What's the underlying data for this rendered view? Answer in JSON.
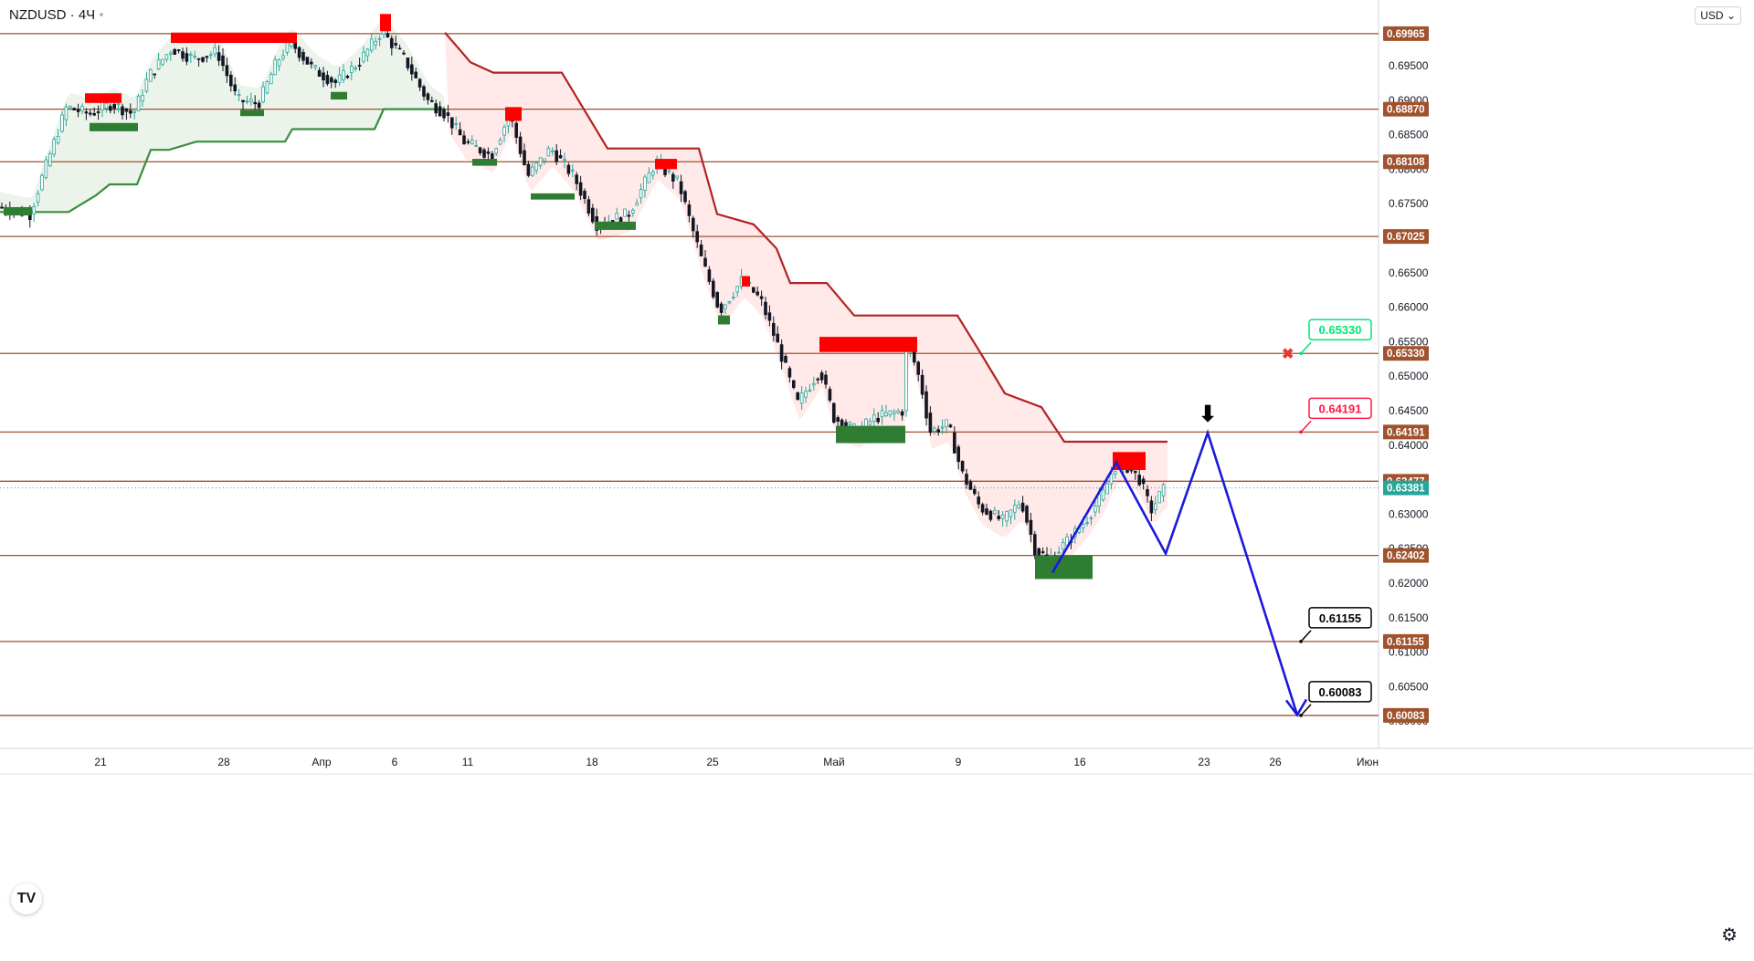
{
  "header": {
    "symbol": "NZDUSD",
    "timeframe": "4Ч",
    "currency": "USD"
  },
  "colors": {
    "level": "#a0522d",
    "level_label": "#a0522d",
    "price_label": "#26a69a",
    "up": "#26a69a",
    "down": "#131722",
    "resist_box": "#ff0000",
    "support_box": "#2e7d32",
    "trail_up": "#388e3c",
    "trail_down": "#b22222",
    "forecast": "#1a1adb",
    "callout_green": "#00e676",
    "callout_red": "#ff1744",
    "callout_black": "#000000"
  },
  "chart_data": {
    "type": "candlestick",
    "symbol": "NZDUSD",
    "timeframe": "4Ч",
    "y_range": [
      0.5985,
      0.7032
    ],
    "y_ticks": [
      "0.69500",
      "0.69000",
      "0.68500",
      "0.68000",
      "0.67500",
      "0.66500",
      "0.66000",
      "0.65500",
      "0.65000",
      "0.64500",
      "0.64000",
      "0.63000",
      "0.62500",
      "0.62000",
      "0.61500",
      "0.61000",
      "0.60500",
      "0.60000"
    ],
    "x_ticks": [
      "21",
      "28",
      "Апр",
      "6",
      "11",
      "18",
      "25",
      "Май",
      "9",
      "16",
      "23",
      "26",
      "Июн"
    ],
    "levels": [
      {
        "label": "0.69965",
        "value": 0.69965
      },
      {
        "label": "0.68870",
        "value": 0.6887
      },
      {
        "label": "0.68108",
        "value": 0.68108
      },
      {
        "label": "0.67025",
        "value": 0.67025
      },
      {
        "label": "0.65330",
        "value": 0.6533
      },
      {
        "label": "0.64191",
        "value": 0.64191
      },
      {
        "label": "0.63477",
        "value": 0.63477
      },
      {
        "label": "0.62402",
        "value": 0.62402
      },
      {
        "label": "0.61155",
        "value": 0.61155
      },
      {
        "label": "0.60083",
        "value": 0.60083
      }
    ],
    "current_price": {
      "label": "0.63381",
      "value": 0.63381
    },
    "price_path": [
      [
        0,
        0.6745
      ],
      [
        35,
        0.6735
      ],
      [
        50,
        0.6795
      ],
      [
        75,
        0.689
      ],
      [
        100,
        0.688
      ],
      [
        125,
        0.6895
      ],
      [
        148,
        0.688
      ],
      [
        165,
        0.6935
      ],
      [
        190,
        0.6975
      ],
      [
        215,
        0.696
      ],
      [
        240,
        0.697
      ],
      [
        262,
        0.69
      ],
      [
        285,
        0.6895
      ],
      [
        305,
        0.6955
      ],
      [
        320,
        0.6985
      ],
      [
        345,
        0.6945
      ],
      [
        370,
        0.6925
      ],
      [
        395,
        0.6955
      ],
      [
        420,
        0.7
      ],
      [
        445,
        0.696
      ],
      [
        470,
        0.69
      ],
      [
        490,
        0.688
      ],
      [
        510,
        0.684
      ],
      [
        540,
        0.682
      ],
      [
        560,
        0.688
      ],
      [
        580,
        0.679
      ],
      [
        605,
        0.683
      ],
      [
        630,
        0.679
      ],
      [
        655,
        0.672
      ],
      [
        690,
        0.6735
      ],
      [
        720,
        0.681
      ],
      [
        745,
        0.678
      ],
      [
        770,
        0.667
      ],
      [
        790,
        0.6595
      ],
      [
        815,
        0.664
      ],
      [
        835,
        0.661
      ],
      [
        855,
        0.654
      ],
      [
        875,
        0.646
      ],
      [
        900,
        0.651
      ],
      [
        915,
        0.644
      ],
      [
        940,
        0.642
      ],
      [
        960,
        0.644
      ],
      [
        990,
        0.645
      ],
      [
        995,
        0.6555
      ],
      [
        1010,
        0.649
      ],
      [
        1020,
        0.642
      ],
      [
        1040,
        0.643
      ],
      [
        1055,
        0.636
      ],
      [
        1075,
        0.631
      ],
      [
        1100,
        0.629
      ],
      [
        1120,
        0.632
      ],
      [
        1135,
        0.625
      ],
      [
        1150,
        0.6235
      ],
      [
        1170,
        0.626
      ],
      [
        1190,
        0.629
      ],
      [
        1210,
        0.633
      ],
      [
        1222,
        0.637
      ],
      [
        1235,
        0.637
      ],
      [
        1250,
        0.635
      ],
      [
        1262,
        0.6305
      ],
      [
        1275,
        0.6335
      ]
    ],
    "trail_support": [
      [
        0,
        0.6738
      ],
      [
        75,
        0.6738
      ],
      [
        105,
        0.6762
      ],
      [
        120,
        0.6778
      ],
      [
        150,
        0.6778
      ],
      [
        165,
        0.6828
      ],
      [
        185,
        0.6828
      ],
      [
        215,
        0.684
      ],
      [
        312,
        0.684
      ],
      [
        320,
        0.6858
      ],
      [
        410,
        0.6858
      ],
      [
        420,
        0.6887
      ],
      [
        487,
        0.6887
      ]
    ],
    "trail_resistance": [
      [
        487,
        0.6998
      ],
      [
        515,
        0.6955
      ],
      [
        540,
        0.694
      ],
      [
        615,
        0.694
      ],
      [
        665,
        0.683
      ],
      [
        765,
        0.683
      ],
      [
        785,
        0.6735
      ],
      [
        825,
        0.672
      ],
      [
        850,
        0.6685
      ],
      [
        865,
        0.6635
      ],
      [
        905,
        0.6635
      ],
      [
        935,
        0.6588
      ],
      [
        1048,
        0.6588
      ],
      [
        1075,
        0.653
      ],
      [
        1100,
        0.6475
      ],
      [
        1140,
        0.6455
      ],
      [
        1165,
        0.6405
      ],
      [
        1278,
        0.6405
      ]
    ],
    "resistance_boxes": [
      {
        "x0": 187,
        "x1": 325,
        "y0": 0.6998,
        "y1": 0.6983
      },
      {
        "x0": 93,
        "x1": 133,
        "y0": 0.691,
        "y1": 0.6896
      },
      {
        "x0": 416,
        "x1": 428,
        "y0": 0.7025,
        "y1": 0.7
      },
      {
        "x0": 553,
        "x1": 571,
        "y0": 0.689,
        "y1": 0.687
      },
      {
        "x0": 717,
        "x1": 741,
        "y0": 0.6815,
        "y1": 0.68
      },
      {
        "x0": 812,
        "x1": 821,
        "y0": 0.6645,
        "y1": 0.663
      },
      {
        "x0": 897,
        "x1": 1004,
        "y0": 0.6557,
        "y1": 0.6535
      },
      {
        "x0": 1218,
        "x1": 1254,
        "y0": 0.639,
        "y1": 0.6364
      }
    ],
    "support_boxes": [
      {
        "x0": 4,
        "x1": 35,
        "y0": 0.6745,
        "y1": 0.6733
      },
      {
        "x0": 98,
        "x1": 151,
        "y0": 0.6867,
        "y1": 0.6855
      },
      {
        "x0": 263,
        "x1": 289,
        "y0": 0.6886,
        "y1": 0.6877
      },
      {
        "x0": 362,
        "x1": 380,
        "y0": 0.6912,
        "y1": 0.6901
      },
      {
        "x0": 517,
        "x1": 544,
        "y0": 0.6815,
        "y1": 0.6805
      },
      {
        "x0": 581,
        "x1": 629,
        "y0": 0.6765,
        "y1": 0.6756
      },
      {
        "x0": 651,
        "x1": 696,
        "y0": 0.6724,
        "y1": 0.6712
      },
      {
        "x0": 786,
        "x1": 799,
        "y0": 0.6588,
        "y1": 0.6575
      },
      {
        "x0": 915,
        "x1": 991,
        "y0": 0.6428,
        "y1": 0.6403
      },
      {
        "x0": 1133,
        "x1": 1196,
        "y0": 0.624,
        "y1": 0.6206
      }
    ],
    "forecast_path": [
      [
        1152,
        0.6215
      ],
      [
        1222,
        0.6375
      ],
      [
        1276,
        0.6243
      ],
      [
        1322,
        0.6418
      ],
      [
        1420,
        0.6009
      ]
    ],
    "callouts": [
      {
        "label": "0.65330",
        "style": "green"
      },
      {
        "label": "0.64191",
        "style": "red"
      },
      {
        "label": "0.61155",
        "style": "black"
      },
      {
        "label": "0.60083",
        "style": "black"
      }
    ],
    "markers": {
      "cross": "✖",
      "arrow": "⬇"
    }
  }
}
